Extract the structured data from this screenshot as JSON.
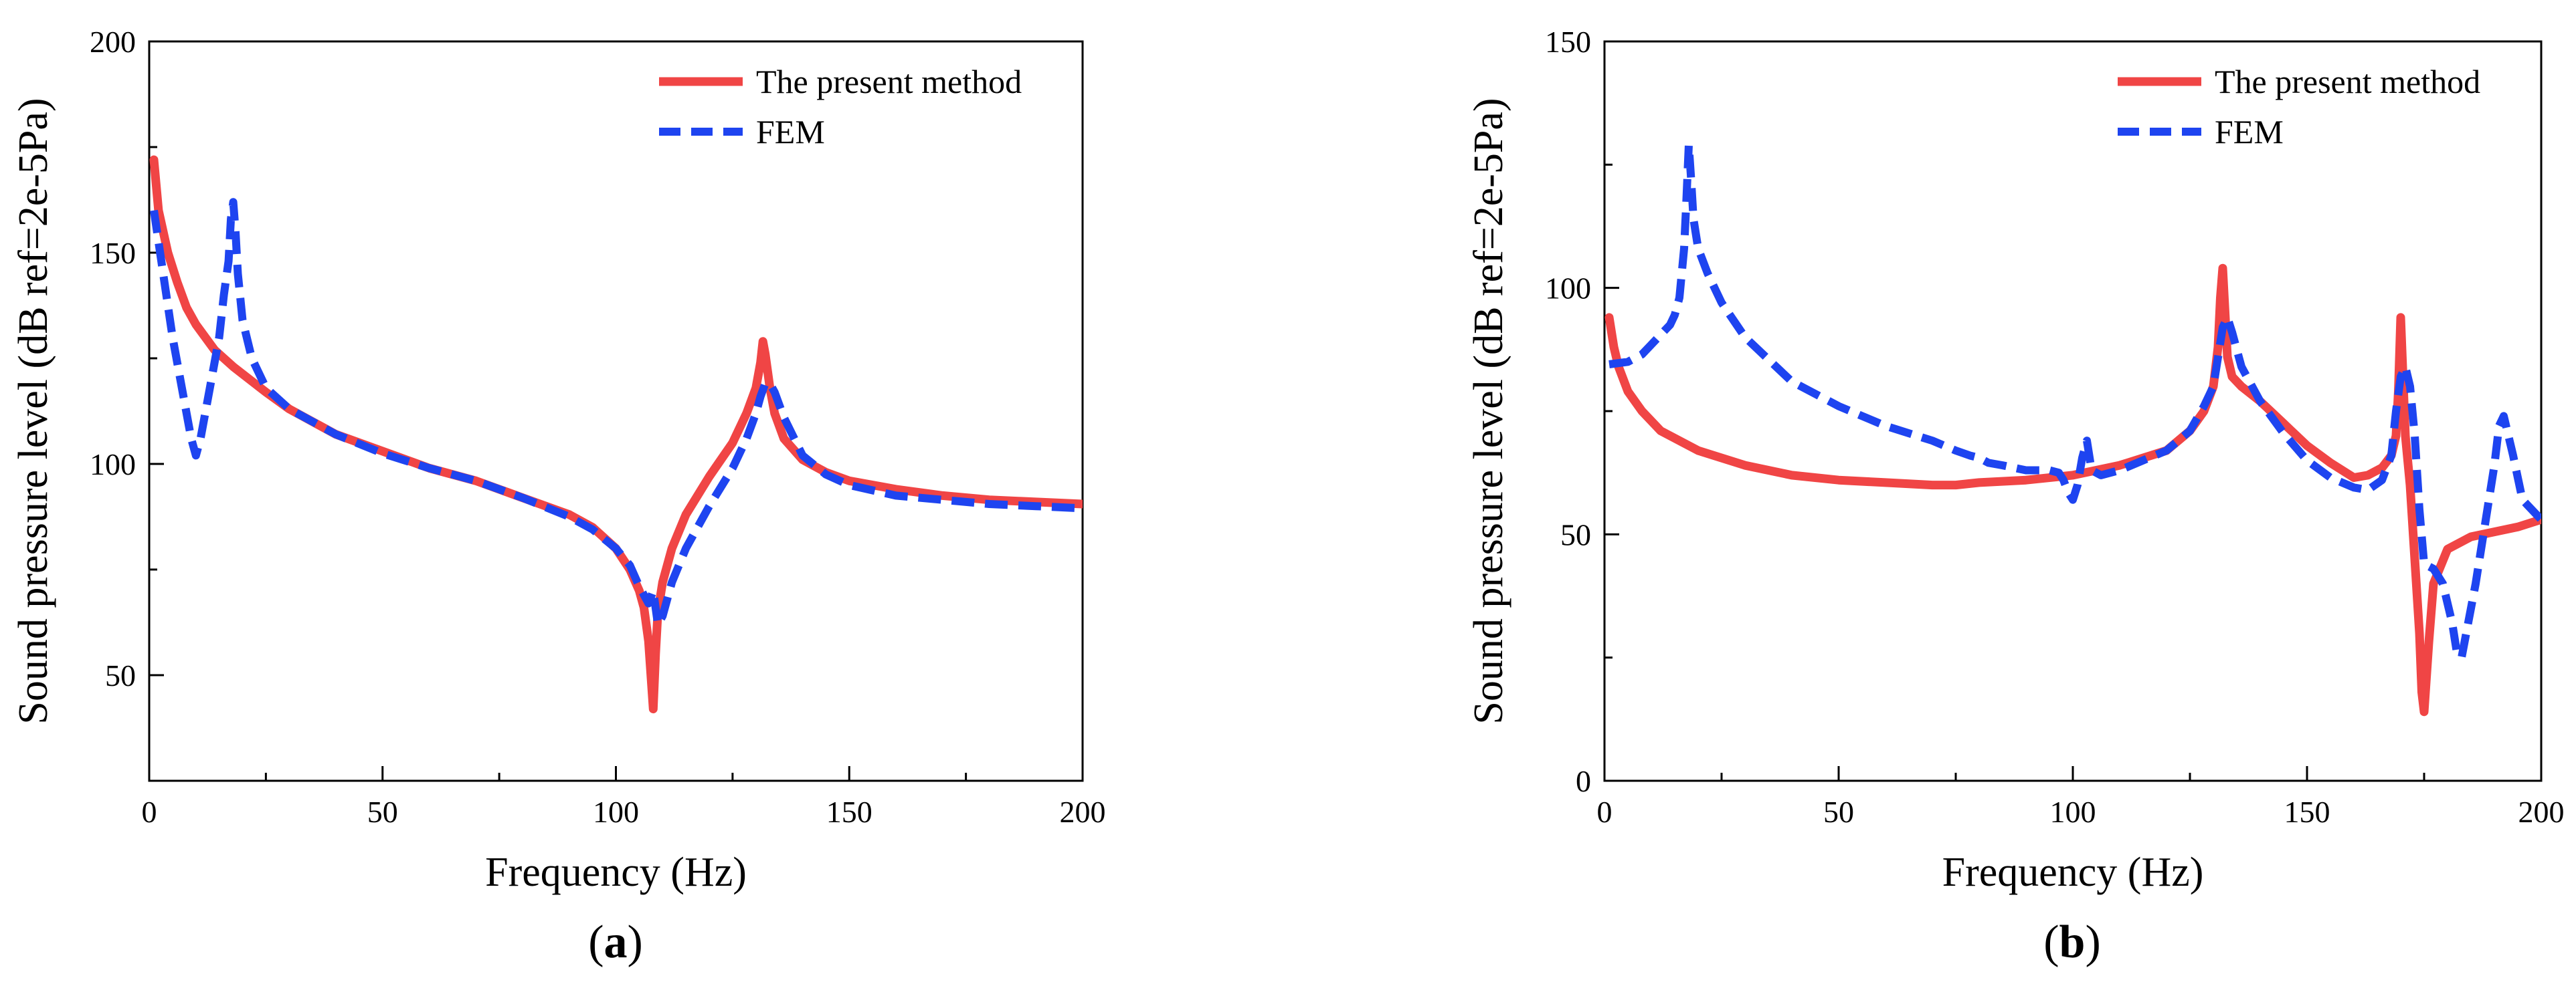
{
  "chart_data": [
    {
      "type": "line",
      "panel_label": "a",
      "xlabel": "Frequency (Hz)",
      "ylabel": "Sound pressure level (dB ref=2e-5Pa)",
      "xlim": [
        0,
        200
      ],
      "ylim": [
        25,
        200
      ],
      "xticks": [
        0,
        50,
        100,
        150,
        200
      ],
      "yticks": [
        50,
        100,
        150,
        200
      ],
      "legend_position": "top-right",
      "series": [
        {
          "name": "The present method",
          "color": "#f04545",
          "style": "solid",
          "x": [
            1,
            2,
            4,
            6,
            8,
            10,
            14,
            18,
            25,
            30,
            40,
            50,
            60,
            70,
            80,
            90,
            95,
            100,
            103,
            105,
            106,
            107,
            107.5,
            108,
            108.5,
            109,
            110,
            112,
            115,
            120,
            125,
            128,
            130,
            131,
            131.5,
            132,
            133,
            134,
            136,
            140,
            145,
            150,
            160,
            170,
            180,
            190,
            200
          ],
          "y": [
            172,
            160,
            150,
            143,
            137,
            133,
            127,
            123,
            117,
            113,
            107,
            103,
            99,
            96,
            92,
            88,
            85,
            80,
            75,
            70,
            66,
            58,
            50,
            42,
            55,
            65,
            72,
            80,
            88,
            97,
            105,
            112,
            118,
            124,
            129,
            126,
            118,
            112,
            106,
            101,
            98,
            96,
            94,
            92.5,
            91.5,
            91,
            90.5
          ]
        },
        {
          "name": "FEM",
          "color": "#1e44f0",
          "style": "dashed",
          "x": [
            1,
            3,
            5,
            7,
            9,
            10,
            11,
            13,
            15,
            16,
            17,
            17.5,
            18,
            18.5,
            19,
            20,
            22,
            25,
            30,
            40,
            50,
            60,
            70,
            80,
            90,
            95,
            100,
            103,
            105,
            107,
            108,
            109,
            110,
            112,
            115,
            120,
            125,
            128,
            130,
            131,
            132,
            133,
            134,
            136,
            140,
            145,
            150,
            160,
            170,
            180,
            190,
            200
          ],
          "y": [
            160,
            145,
            130,
            118,
            106,
            102,
            106,
            118,
            130,
            140,
            148,
            158,
            162,
            155,
            145,
            134,
            125,
            118,
            113,
            107,
            102.5,
            99,
            96,
            92,
            87.5,
            84.5,
            80,
            76,
            71,
            67,
            70,
            62,
            64,
            72,
            80,
            90,
            99,
            106,
            112,
            116,
            119,
            119,
            117,
            111,
            102,
            97.5,
            95,
            92.5,
            91.5,
            90.5,
            90,
            89.5
          ]
        }
      ]
    },
    {
      "type": "line",
      "panel_label": "b",
      "xlabel": "Frequency (Hz)",
      "ylabel": "Sound pressure level (dB ref=2e-5Pa)",
      "xlim": [
        0,
        200
      ],
      "ylim": [
        0,
        150
      ],
      "xticks": [
        0,
        50,
        100,
        150,
        200
      ],
      "yticks": [
        0,
        50,
        100,
        150
      ],
      "legend_position": "top-right",
      "series": [
        {
          "name": "The present method",
          "color": "#f04545",
          "style": "solid",
          "x": [
            1,
            2,
            3,
            5,
            8,
            12,
            20,
            30,
            40,
            50,
            60,
            70,
            75,
            80,
            90,
            100,
            110,
            120,
            125,
            128,
            130,
            131,
            131.5,
            132,
            132.5,
            133,
            134,
            136,
            140,
            145,
            150,
            155,
            160,
            163,
            166,
            168,
            169,
            169.5,
            170,
            170.5,
            171,
            172,
            173,
            174,
            174.5,
            175,
            176,
            177,
            180,
            185,
            190,
            195,
            200
          ],
          "y": [
            94,
            88,
            84,
            79,
            75,
            71,
            67,
            64,
            62,
            61,
            60.5,
            60,
            60,
            60.5,
            61,
            62,
            64,
            67,
            71,
            75,
            80,
            88,
            98,
            104,
            95,
            86,
            82,
            80,
            77,
            72.5,
            68,
            64.5,
            61.5,
            62,
            63.5,
            66,
            70,
            79,
            94,
            82,
            70,
            60,
            45,
            30,
            18,
            14,
            28,
            40,
            47,
            49.5,
            50.5,
            51.5,
            53
          ]
        },
        {
          "name": "FEM",
          "color": "#1e44f0",
          "style": "dashed",
          "x": [
            1,
            5,
            8,
            10,
            12,
            14,
            15,
            16,
            17,
            17.5,
            18,
            18.5,
            19,
            20,
            22,
            25,
            30,
            40,
            50,
            60,
            70,
            75,
            78,
            80,
            82,
            85,
            90,
            95,
            97,
            98,
            99,
            100,
            101,
            102,
            103,
            104,
            106,
            110,
            115,
            120,
            125,
            128,
            130,
            131,
            132,
            133,
            134,
            136,
            140,
            145,
            150,
            155,
            160,
            163,
            166,
            168,
            169,
            170,
            171,
            172,
            173,
            174,
            175,
            177,
            179,
            181,
            182,
            183,
            184,
            186,
            188,
            190,
            191,
            192,
            194,
            196,
            200
          ],
          "y": [
            84.5,
            85,
            86.5,
            88.5,
            90.5,
            92.5,
            94.5,
            98,
            108,
            118,
            129,
            122,
            114,
            108,
            103,
            97,
            90,
            81,
            76,
            72,
            69,
            67,
            66,
            65.5,
            64.5,
            64,
            63,
            63,
            62.5,
            61,
            58.5,
            57,
            60,
            65.5,
            69,
            63,
            62,
            63,
            65,
            67,
            71,
            76,
            80,
            86,
            92,
            94,
            91,
            84,
            77,
            70.5,
            65,
            61.5,
            59.5,
            59,
            61,
            66,
            75,
            82,
            84,
            80,
            70,
            55,
            44,
            43,
            40,
            32,
            26,
            25,
            30,
            40,
            52,
            64,
            72,
            74,
            66,
            57,
            53
          ]
        }
      ]
    }
  ]
}
